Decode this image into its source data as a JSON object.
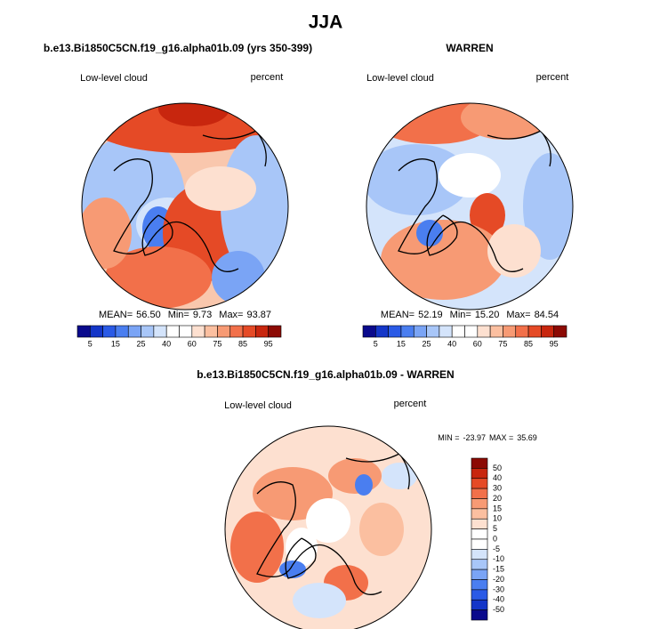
{
  "title": "JJA",
  "panels": [
    {
      "title": "b.e13.Bi1850C5CN.f19_g16.alpha01b.09 (yrs 350-399)",
      "variable": "Low-level cloud",
      "units": "percent",
      "stats": [
        "MEAN=",
        "56.50",
        "Min=",
        "9.73",
        "Max=",
        "93.87"
      ],
      "colorbar": [
        "5",
        "15",
        "25",
        "40",
        "60",
        "75",
        "85",
        "95"
      ]
    },
    {
      "title": "WARREN",
      "variable": "Low-level cloud",
      "units": "percent",
      "stats": [
        "MEAN=",
        "52.19",
        "Min=",
        "15.20",
        "Max=",
        "84.54"
      ],
      "colorbar": [
        "5",
        "15",
        "25",
        "40",
        "60",
        "75",
        "85",
        "95"
      ]
    }
  ],
  "difference": {
    "title": "b.e13.Bi1850C5CN.f19_g16.alpha01b.09 - WARREN",
    "variable": "Low-level cloud",
    "units": "percent",
    "stats": [
      "MIN =",
      "-23.97",
      "MAX =",
      "35.69"
    ],
    "colorbar": [
      "50",
      "40",
      "30",
      "20",
      "15",
      "10",
      "5",
      "0",
      "-5",
      "-10",
      "-15",
      "-20",
      "-30",
      "-40",
      "-50"
    ]
  }
}
